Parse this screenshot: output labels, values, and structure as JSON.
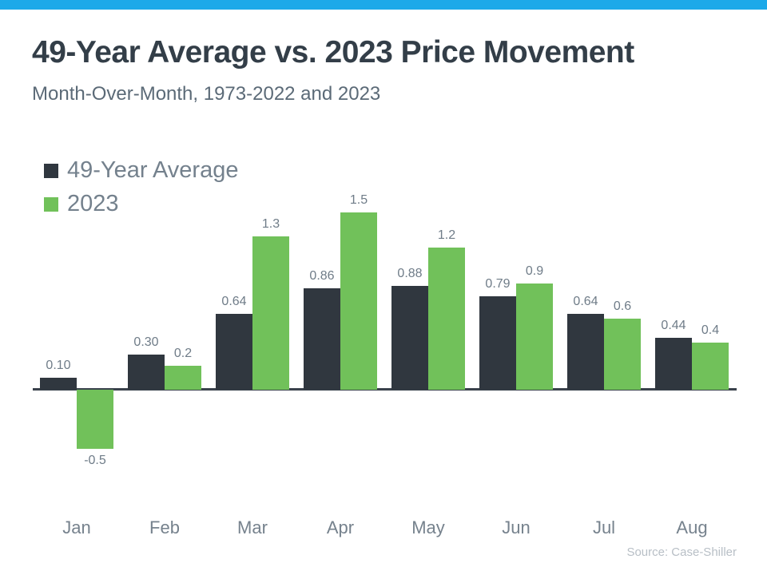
{
  "page": {
    "title": "49-Year Average vs. 2023 Price Movement",
    "subtitle": "Month-Over-Month, 1973-2022 and 2023",
    "source": "Source: Case-Shiller",
    "accent_bar_color": "#1ca9e9"
  },
  "chart_data": {
    "type": "bar",
    "title": "49-Year Average vs. 2023 Price Movement",
    "subtitle": "Month-Over-Month, 1973-2022 and 2023",
    "xlabel": "",
    "ylabel": "",
    "ylim": [
      -0.6,
      1.6
    ],
    "grid": false,
    "legend_position": "top-left",
    "data_labels": true,
    "categories": [
      "Jan",
      "Feb",
      "Mar",
      "Apr",
      "May",
      "Jun",
      "Jul",
      "Aug"
    ],
    "series": [
      {
        "name": "49-Year Average",
        "color": "#30373f",
        "values": [
          0.1,
          0.3,
          0.64,
          0.86,
          0.88,
          0.79,
          0.64,
          0.44
        ],
        "labels": [
          "0.10",
          "0.30",
          "0.64",
          "0.86",
          "0.88",
          "0.79",
          "0.64",
          "0.44"
        ]
      },
      {
        "name": "2023",
        "color": "#71c15a",
        "values": [
          -0.5,
          0.2,
          1.3,
          1.5,
          1.2,
          0.9,
          0.6,
          0.4
        ],
        "labels": [
          "-0.5",
          "0.2",
          "1.3",
          "1.5",
          "1.2",
          "0.9",
          "0.6",
          "0.4"
        ]
      }
    ]
  }
}
